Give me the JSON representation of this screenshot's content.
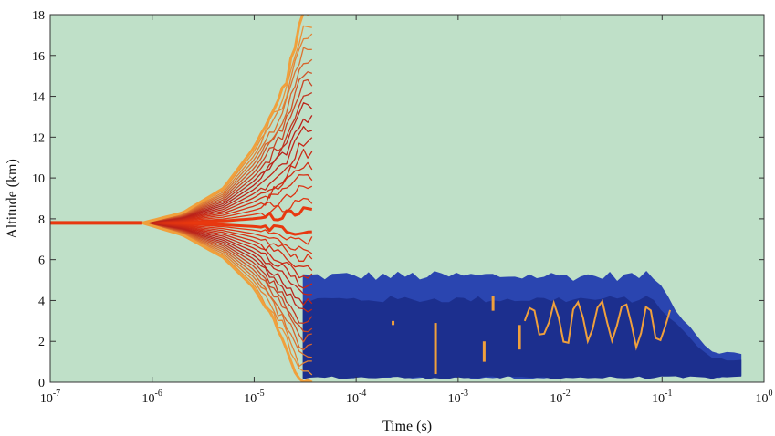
{
  "chart_data": {
    "type": "contour",
    "title": "",
    "xlabel": "Time (s)",
    "ylabel": "Altitude (km)",
    "x_scale": "log",
    "xlim": [
      1e-07,
      1
    ],
    "ylim": [
      0,
      18
    ],
    "x_ticks": [
      {
        "value": 1e-07,
        "base": "10",
        "exp": "-7"
      },
      {
        "value": 1e-06,
        "base": "10",
        "exp": "-6"
      },
      {
        "value": 1e-05,
        "base": "10",
        "exp": "-5"
      },
      {
        "value": 0.0001,
        "base": "10",
        "exp": "-4"
      },
      {
        "value": 0.001,
        "base": "10",
        "exp": "-3"
      },
      {
        "value": 0.01,
        "base": "10",
        "exp": "-2"
      },
      {
        "value": 0.1,
        "base": "10",
        "exp": "-1"
      },
      {
        "value": 1,
        "base": "10",
        "exp": "0"
      }
    ],
    "y_ticks": [
      0,
      2,
      4,
      6,
      8,
      10,
      12,
      14,
      16,
      18
    ],
    "grid": false,
    "legend": "none",
    "colors": {
      "background": "#bfe0c8",
      "filled_region_outer": "#2a45b0",
      "filled_region_inner": "#1c2f8e",
      "contour_hot": "#e8380f",
      "contour_mid": "#b8201a",
      "contour_cool": "#f0a03c"
    },
    "plume": {
      "source_altitude_km": 7.8,
      "branch_start_time_s": 8e-07,
      "converge_time_s": 2.8e-05,
      "top_envelope": [
        [
          8e-07,
          7.8
        ],
        [
          2e-06,
          8.3
        ],
        [
          5e-06,
          9.5
        ],
        [
          1e-05,
          11.5
        ],
        [
          2e-05,
          14.5
        ],
        [
          3e-05,
          18
        ]
      ],
      "bottom_envelope": [
        [
          8e-07,
          7.8
        ],
        [
          2e-06,
          7.2
        ],
        [
          5e-06,
          6.1
        ],
        [
          1e-05,
          4.6
        ],
        [
          2e-05,
          2.0
        ],
        [
          2.8e-05,
          0
        ]
      ]
    },
    "filled_region": {
      "time_range_s": [
        3e-05,
        0.6
      ],
      "altitude_range_km": [
        0,
        5.2
      ]
    }
  }
}
